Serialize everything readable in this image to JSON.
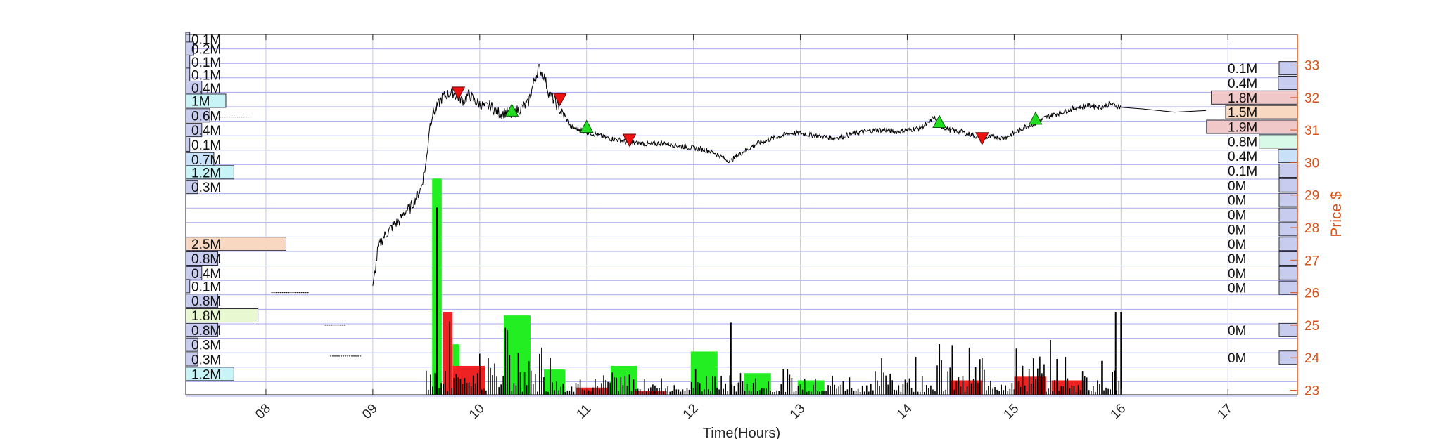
{
  "chart_data": {
    "type": "line",
    "xlabel": "Time(Hours)",
    "ylabel": "Price $",
    "xlim": [
      7.25,
      17.65
    ],
    "ylim": [
      22.86,
      33.94
    ],
    "xticks": [
      8,
      9,
      10,
      11,
      12,
      13,
      14,
      15,
      16,
      17
    ],
    "xtick_labels": [
      "08",
      "09",
      "10",
      "11",
      "12",
      "13",
      "14",
      "15",
      "16",
      "17"
    ],
    "yticks": [
      23,
      24,
      25,
      26,
      27,
      28,
      29,
      30,
      31,
      32,
      33
    ],
    "ytick_labels": [
      "23",
      "24",
      "25",
      "26",
      "27",
      "28",
      "29",
      "30",
      "31",
      "32",
      "33"
    ],
    "grid": true,
    "colors": {
      "price_line": "#000000",
      "right_axis": "#d95319",
      "grid": "#9b9bf0",
      "buy_volume": "#22ee22",
      "sell_volume": "#ee2222",
      "buy_marker": "#22dd22",
      "sell_marker": "#ee1111",
      "profile_default": "#c8cdf0",
      "profile_highlight_peach": "#f8d8c0",
      "profile_highlight_cyan": "#c8f4f8",
      "profile_highlight_lime": "#e8f8d0",
      "profile_highlight_rose": "#f0c8c8",
      "profile_highlight_mint": "#d8f8e8",
      "profile_highlight_sky": "#c8e0f8"
    },
    "price_series": {
      "name": "",
      "x": [
        7.55,
        7.85,
        8.05,
        8.55,
        8.65,
        8.75,
        9.0,
        9.05,
        9.1,
        9.15,
        9.2,
        9.25,
        9.3,
        9.35,
        9.4,
        9.45,
        9.5,
        9.53,
        9.56,
        9.6,
        9.65,
        9.7,
        9.75,
        9.8,
        9.85,
        9.9,
        9.95,
        10.0,
        10.05,
        10.1,
        10.15,
        10.2,
        10.25,
        10.3,
        10.35,
        10.4,
        10.45,
        10.5,
        10.55,
        10.6,
        10.65,
        10.7,
        10.75,
        10.8,
        10.85,
        10.9,
        10.95,
        11.0,
        11.1,
        11.2,
        11.3,
        11.4,
        11.5,
        11.6,
        11.7,
        11.8,
        11.9,
        12.0,
        12.1,
        12.2,
        12.3,
        12.35,
        12.4,
        12.5,
        12.6,
        12.7,
        12.8,
        12.9,
        13.0,
        13.1,
        13.2,
        13.3,
        13.4,
        13.5,
        13.6,
        13.7,
        13.8,
        13.9,
        14.0,
        14.1,
        14.2,
        14.25,
        14.3,
        14.4,
        14.5,
        14.6,
        14.7,
        14.8,
        14.9,
        15.0,
        15.1,
        15.2,
        15.3,
        15.4,
        15.5,
        15.6,
        15.7,
        15.8,
        15.9,
        16.0,
        16.2,
        16.5,
        16.8
      ],
      "y": [
        31.4,
        31.4,
        31.4,
        26.0,
        26.05,
        26.1,
        26.1,
        27.4,
        27.7,
        27.9,
        28.1,
        28.2,
        28.5,
        28.6,
        28.9,
        29.2,
        30.0,
        31.1,
        31.5,
        31.7,
        32.0,
        32.1,
        32.15,
        32.0,
        31.9,
        32.1,
        31.9,
        31.8,
        31.7,
        31.75,
        31.6,
        31.5,
        31.55,
        31.45,
        31.6,
        31.7,
        31.8,
        32.4,
        32.9,
        32.7,
        32.1,
        31.9,
        31.6,
        31.4,
        31.1,
        31.05,
        31.0,
        30.95,
        30.85,
        30.75,
        30.7,
        30.6,
        30.6,
        30.55,
        30.6,
        30.55,
        30.5,
        30.45,
        30.4,
        30.3,
        30.1,
        30.05,
        30.2,
        30.4,
        30.6,
        30.7,
        30.8,
        30.9,
        30.9,
        30.85,
        30.8,
        30.75,
        30.8,
        30.9,
        30.95,
        31.0,
        31.0,
        30.95,
        31.0,
        31.05,
        31.2,
        31.4,
        31.15,
        31.0,
        30.95,
        30.85,
        30.75,
        30.8,
        30.75,
        30.9,
        31.1,
        31.2,
        31.4,
        31.5,
        31.6,
        31.7,
        31.75,
        31.7,
        31.8,
        31.7,
        31.65,
        31.55,
        31.6
      ]
    },
    "volume_bars_buy": {
      "name": "",
      "x": [
        9.6,
        9.75,
        10.35,
        10.7,
        11.35,
        12.1,
        12.6,
        13.1
      ],
      "height_fraction": [
        0.6,
        0.14,
        0.22,
        0.07,
        0.08,
        0.12,
        0.06,
        0.04
      ],
      "width_hours": [
        0.09,
        0.12,
        0.25,
        0.2,
        0.25,
        0.25,
        0.25,
        0.25
      ]
    },
    "volume_bars_sell": {
      "name": "",
      "x": [
        9.7,
        9.9,
        11.05,
        11.6,
        14.55,
        15.15,
        15.5
      ],
      "height_fraction": [
        0.23,
        0.08,
        0.02,
        0.01,
        0.04,
        0.05,
        0.04
      ],
      "width_hours": [
        0.09,
        0.3,
        0.3,
        0.3,
        0.3,
        0.3,
        0.3
      ]
    },
    "buy_signals": {
      "x": [
        10.3,
        11.0,
        14.3,
        15.2
      ],
      "y": [
        31.6,
        31.1,
        31.25,
        31.35
      ]
    },
    "sell_signals": {
      "x": [
        9.8,
        10.75,
        11.4,
        14.7
      ],
      "y": [
        32.15,
        31.95,
        30.7,
        30.75
      ]
    },
    "left_profile": [
      {
        "label": "0.1M",
        "level": 33.8,
        "value": 0.1,
        "color": "default"
      },
      {
        "label": "0.2M",
        "level": 33.5,
        "value": 0.2,
        "color": "default"
      },
      {
        "label": "0.1M",
        "level": 33.1,
        "value": 0.1,
        "color": "default"
      },
      {
        "label": "0.1M",
        "level": 32.7,
        "value": 0.1,
        "color": "default"
      },
      {
        "label": "0.4M",
        "level": 32.3,
        "value": 0.4,
        "color": "default"
      },
      {
        "label": "1M",
        "level": 31.9,
        "value": 1.0,
        "color": "cyan"
      },
      {
        "label": "0.6M",
        "level": 31.45,
        "value": 0.6,
        "color": "default"
      },
      {
        "label": "0.4M",
        "level": 31.0,
        "value": 0.4,
        "color": "default"
      },
      {
        "label": "0.1M",
        "level": 30.55,
        "value": 0.1,
        "color": "default"
      },
      {
        "label": "0.7M",
        "level": 30.1,
        "value": 0.7,
        "color": "sky"
      },
      {
        "label": "1.2M",
        "level": 29.7,
        "value": 1.2,
        "color": "cyan"
      },
      {
        "label": "0.3M",
        "level": 29.25,
        "value": 0.3,
        "color": "default"
      },
      {
        "label": "2.5M",
        "level": 27.5,
        "value": 2.5,
        "color": "peach"
      },
      {
        "label": "0.8M",
        "level": 27.05,
        "value": 0.8,
        "color": "default"
      },
      {
        "label": "0.4M",
        "level": 26.6,
        "value": 0.4,
        "color": "default"
      },
      {
        "label": "0.1M",
        "level": 26.2,
        "value": 0.1,
        "color": "default"
      },
      {
        "label": "0.8M",
        "level": 25.75,
        "value": 0.8,
        "color": "default"
      },
      {
        "label": "1.8M",
        "level": 25.3,
        "value": 1.8,
        "color": "lime"
      },
      {
        "label": "0.8M",
        "level": 24.85,
        "value": 0.8,
        "color": "default"
      },
      {
        "label": "0.3M",
        "level": 24.4,
        "value": 0.3,
        "color": "default"
      },
      {
        "label": "0.3M",
        "level": 23.95,
        "value": 0.3,
        "color": "default"
      },
      {
        "label": "1.2M",
        "level": 23.5,
        "value": 1.2,
        "color": "cyan"
      }
    ],
    "right_profile": [
      {
        "label": "0.1M",
        "level": 32.9,
        "value": 0.1,
        "color": "default"
      },
      {
        "label": "0.4M",
        "level": 32.45,
        "value": 0.4,
        "color": "default"
      },
      {
        "label": "1.8M",
        "level": 32.0,
        "value": 1.8,
        "color": "rose"
      },
      {
        "label": "1.5M",
        "level": 31.55,
        "value": 1.5,
        "color": "peach"
      },
      {
        "label": "1.9M",
        "level": 31.1,
        "value": 1.9,
        "color": "rose"
      },
      {
        "label": "0.8M",
        "level": 30.65,
        "value": 0.8,
        "color": "mint"
      },
      {
        "label": "0.4M",
        "level": 30.2,
        "value": 0.4,
        "color": "sky"
      },
      {
        "label": "0.1M",
        "level": 29.75,
        "value": 0.1,
        "color": "default"
      },
      {
        "label": "0M",
        "level": 29.3,
        "value": 0.0,
        "color": "default"
      },
      {
        "label": "0M",
        "level": 28.85,
        "value": 0.0,
        "color": "default"
      },
      {
        "label": "0M",
        "level": 28.4,
        "value": 0.0,
        "color": "default"
      },
      {
        "label": "0M",
        "level": 27.95,
        "value": 0.0,
        "color": "default"
      },
      {
        "label": "0M",
        "level": 27.5,
        "value": 0.0,
        "color": "default"
      },
      {
        "label": "0M",
        "level": 27.05,
        "value": 0.0,
        "color": "default"
      },
      {
        "label": "0M",
        "level": 26.6,
        "value": 0.0,
        "color": "default"
      },
      {
        "label": "0M",
        "level": 26.15,
        "value": 0.0,
        "color": "default"
      },
      {
        "label": "0M",
        "level": 24.85,
        "value": 0.0,
        "color": "default"
      },
      {
        "label": "0M",
        "level": 24.0,
        "value": 0.0,
        "color": "default"
      }
    ]
  }
}
